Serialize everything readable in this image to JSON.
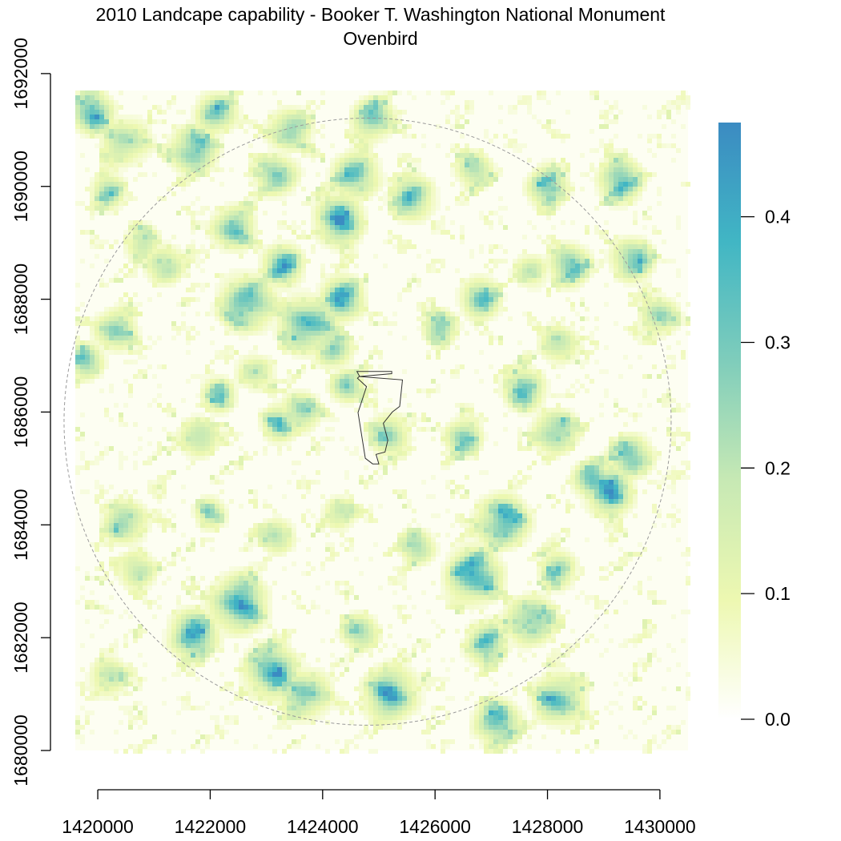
{
  "chart_data": {
    "type": "heatmap",
    "title": "2010 Landcape capability - Booker T. Washington National Monument",
    "subtitle": "Ovenbird",
    "xlabel": "",
    "ylabel": "",
    "x_ticks": [
      1420000,
      1422000,
      1424000,
      1426000,
      1428000,
      1430000
    ],
    "y_ticks": [
      1680000,
      1682000,
      1684000,
      1686000,
      1688000,
      1690000,
      1692000
    ],
    "x_tick_labels": [
      "1420000",
      "1422000",
      "1424000",
      "1426000",
      "1428000",
      "1430000"
    ],
    "y_tick_labels": [
      "1680000",
      "1682000",
      "1684000",
      "1686000",
      "1688000",
      "1690000",
      "1692000"
    ],
    "xlim": [
      1419600,
      1430500
    ],
    "ylim": [
      1680000,
      1691700
    ],
    "value_range": [
      0,
      0.475
    ],
    "legend": {
      "position": "right",
      "ticks": [
        0.0,
        0.1,
        0.2,
        0.3,
        0.4
      ],
      "tick_labels": [
        "0.0",
        "0.1",
        "0.2",
        "0.3",
        "0.4"
      ]
    },
    "colorscale": [
      "#ffffff",
      "#edf8b1",
      "#c7e9b4",
      "#7fcdbb",
      "#41b6c4",
      "#3b8bc2"
    ],
    "grid": false,
    "buffer_boundary": {
      "style": "dashed",
      "color": "#9a9a9a",
      "center": [
        1424800,
        1685830
      ],
      "radius": 5400
    },
    "park_boundary": {
      "color": "#333333",
      "polygon": [
        [
          1424610,
          1686720
        ],
        [
          1425230,
          1686720
        ],
        [
          1425230,
          1686680
        ],
        [
          1424650,
          1686630
        ],
        [
          1424620,
          1686600
        ],
        [
          1424780,
          1686450
        ],
        [
          1424630,
          1685990
        ],
        [
          1424760,
          1685180
        ],
        [
          1424890,
          1685080
        ],
        [
          1425000,
          1685080
        ],
        [
          1424950,
          1685250
        ],
        [
          1425110,
          1685290
        ],
        [
          1425160,
          1685500
        ],
        [
          1425080,
          1685800
        ],
        [
          1425240,
          1686000
        ],
        [
          1425370,
          1686100
        ],
        [
          1425420,
          1686570
        ],
        [
          1424660,
          1686630
        ]
      ]
    },
    "hotspots": [
      [
        1422650,
        1687930,
        0.44,
        420
      ],
      [
        1423750,
        1687550,
        0.46,
        420
      ],
      [
        1424350,
        1688000,
        0.4,
        350
      ],
      [
        1424420,
        1686450,
        0.36,
        260
      ],
      [
        1423600,
        1686000,
        0.36,
        300
      ],
      [
        1423250,
        1685800,
        0.32,
        300
      ],
      [
        1422150,
        1686300,
        0.3,
        280
      ],
      [
        1421800,
        1685550,
        0.34,
        300
      ],
      [
        1420500,
        1684050,
        0.34,
        340
      ],
      [
        1420700,
        1683200,
        0.3,
        300
      ],
      [
        1422500,
        1682600,
        0.46,
        430
      ],
      [
        1421700,
        1682050,
        0.42,
        380
      ],
      [
        1423100,
        1681400,
        0.42,
        420
      ],
      [
        1423700,
        1681000,
        0.38,
        380
      ],
      [
        1425200,
        1681000,
        0.42,
        420
      ],
      [
        1426700,
        1683100,
        0.46,
        420
      ],
      [
        1427200,
        1684050,
        0.46,
        400
      ],
      [
        1427700,
        1682300,
        0.4,
        380
      ],
      [
        1428200,
        1680900,
        0.42,
        380
      ],
      [
        1427100,
        1680500,
        0.4,
        360
      ],
      [
        1429100,
        1684600,
        0.42,
        380
      ],
      [
        1429500,
        1685200,
        0.42,
        330
      ],
      [
        1428800,
        1684800,
        0.42,
        300
      ],
      [
        1428150,
        1685650,
        0.4,
        330
      ],
      [
        1427600,
        1686400,
        0.36,
        330
      ],
      [
        1426800,
        1688000,
        0.36,
        320
      ],
      [
        1426500,
        1685550,
        0.34,
        300
      ],
      [
        1425200,
        1685600,
        0.32,
        320
      ],
      [
        1425700,
        1683600,
        0.3,
        280
      ],
      [
        1426100,
        1687500,
        0.34,
        280
      ],
      [
        1425600,
        1689800,
        0.36,
        350
      ],
      [
        1424600,
        1690200,
        0.4,
        360
      ],
      [
        1424300,
        1689400,
        0.44,
        380
      ],
      [
        1422400,
        1689250,
        0.38,
        340
      ],
      [
        1423200,
        1690200,
        0.36,
        330
      ],
      [
        1421700,
        1690650,
        0.42,
        360
      ],
      [
        1420500,
        1690800,
        0.3,
        380
      ],
      [
        1419900,
        1691300,
        0.4,
        340
      ],
      [
        1422100,
        1691300,
        0.36,
        330
      ],
      [
        1423400,
        1691000,
        0.36,
        330
      ],
      [
        1424900,
        1691200,
        0.38,
        330
      ],
      [
        1428400,
        1688600,
        0.36,
        330
      ],
      [
        1429500,
        1688700,
        0.38,
        330
      ],
      [
        1428200,
        1687200,
        0.3,
        300
      ],
      [
        1430000,
        1687700,
        0.34,
        300
      ],
      [
        1429300,
        1690100,
        0.38,
        350
      ],
      [
        1428000,
        1690000,
        0.34,
        330
      ],
      [
        1420300,
        1687450,
        0.36,
        320
      ],
      [
        1419800,
        1686900,
        0.36,
        280
      ],
      [
        1424200,
        1687100,
        0.34,
        300
      ],
      [
        1423300,
        1688600,
        0.4,
        320
      ],
      [
        1422800,
        1686700,
        0.26,
        300
      ],
      [
        1421200,
        1688600,
        0.34,
        300
      ],
      [
        1420200,
        1689900,
        0.3,
        280
      ],
      [
        1420200,
        1681300,
        0.28,
        300
      ],
      [
        1423200,
        1683800,
        0.3,
        280
      ],
      [
        1424300,
        1684200,
        0.28,
        260
      ],
      [
        1426900,
        1681900,
        0.36,
        330
      ],
      [
        1428200,
        1683200,
        0.3,
        300
      ],
      [
        1424700,
        1682100,
        0.3,
        300
      ],
      [
        1422000,
        1684200,
        0.24,
        280
      ],
      [
        1420800,
        1689000,
        0.24,
        300
      ],
      [
        1426700,
        1690300,
        0.28,
        300
      ],
      [
        1427700,
        1688500,
        0.26,
        280
      ]
    ]
  }
}
